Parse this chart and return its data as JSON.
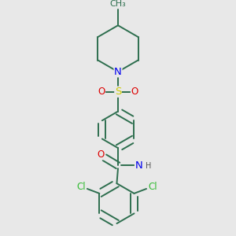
{
  "bg_color": "#e8e8e8",
  "bond_color": "#2d6e4e",
  "bond_width": 1.4,
  "atom_colors": {
    "C": "#2d6e4e",
    "N": "#0000ee",
    "O": "#dd0000",
    "S": "#cccc00",
    "Cl": "#33bb33",
    "H": "#555555"
  },
  "font_size": 8.5,
  "fig_size": [
    3.0,
    3.0
  ],
  "dpi": 100
}
